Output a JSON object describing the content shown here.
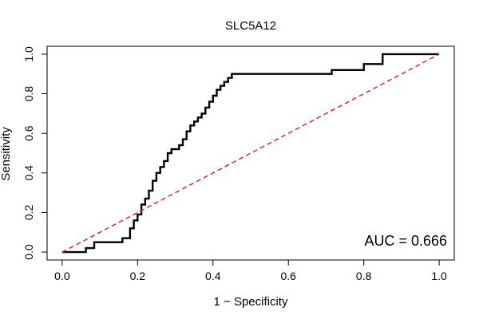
{
  "chart_data": {
    "type": "line",
    "title": "SLC5A12",
    "xlabel": "1 − Specificity",
    "ylabel": "Sensitivity",
    "xlim": [
      -0.04,
      1.04
    ],
    "ylim": [
      -0.04,
      1.04
    ],
    "xticks": [
      0.0,
      0.2,
      0.4,
      0.6,
      0.8,
      1.0
    ],
    "xtick_labels": [
      "0.0",
      "0.2",
      "0.4",
      "0.6",
      "0.8",
      "1.0"
    ],
    "yticks": [
      0.0,
      0.2,
      0.4,
      0.6,
      0.8,
      1.0
    ],
    "ytick_labels": [
      "0.0",
      "0.2",
      "0.4",
      "0.6",
      "0.8",
      "1.0"
    ],
    "grid": false,
    "annotation": "AUC = 0.666",
    "series": [
      {
        "style": "solid",
        "color": "#000000",
        "x": [
          0.0,
          0.063,
          0.063,
          0.085,
          0.085,
          0.16,
          0.16,
          0.18,
          0.18,
          0.19,
          0.19,
          0.2,
          0.2,
          0.21,
          0.21,
          0.22,
          0.22,
          0.23,
          0.23,
          0.24,
          0.24,
          0.25,
          0.25,
          0.26,
          0.26,
          0.27,
          0.27,
          0.28,
          0.28,
          0.29,
          0.29,
          0.31,
          0.31,
          0.32,
          0.32,
          0.33,
          0.33,
          0.34,
          0.34,
          0.35,
          0.35,
          0.36,
          0.36,
          0.37,
          0.37,
          0.38,
          0.38,
          0.39,
          0.39,
          0.4,
          0.4,
          0.41,
          0.41,
          0.42,
          0.42,
          0.43,
          0.43,
          0.44,
          0.44,
          0.45,
          0.45,
          0.715,
          0.715,
          0.8,
          0.8,
          0.85,
          0.85,
          1.0
        ],
        "y": [
          0.0,
          0.0,
          0.02,
          0.02,
          0.05,
          0.05,
          0.07,
          0.07,
          0.12,
          0.12,
          0.16,
          0.16,
          0.19,
          0.19,
          0.24,
          0.24,
          0.27,
          0.27,
          0.31,
          0.31,
          0.36,
          0.36,
          0.4,
          0.4,
          0.43,
          0.43,
          0.46,
          0.46,
          0.5,
          0.5,
          0.52,
          0.52,
          0.54,
          0.54,
          0.57,
          0.57,
          0.61,
          0.61,
          0.64,
          0.64,
          0.66,
          0.66,
          0.68,
          0.68,
          0.7,
          0.7,
          0.73,
          0.73,
          0.76,
          0.76,
          0.79,
          0.79,
          0.82,
          0.82,
          0.84,
          0.84,
          0.86,
          0.86,
          0.88,
          0.88,
          0.9,
          0.9,
          0.92,
          0.92,
          0.95,
          0.95,
          1.0,
          1.0
        ]
      },
      {
        "style": "dashed",
        "color": "#e31a1c",
        "x": [
          0.0,
          1.0
        ],
        "y": [
          0.0,
          1.0
        ]
      }
    ]
  }
}
